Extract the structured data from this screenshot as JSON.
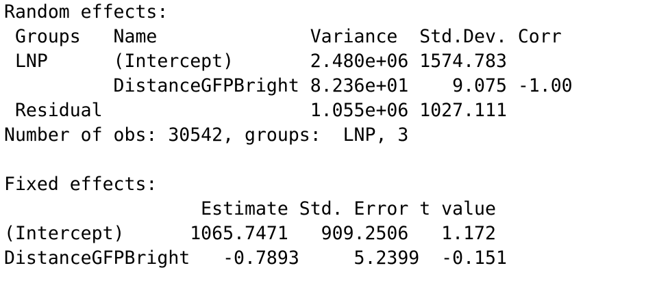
{
  "console": {
    "lines": [
      "Random effects:",
      " Groups   Name              Variance  Std.Dev. Corr",
      " LNP      (Intercept)       2.480e+06 1574.783",
      "          DistanceGFPBright 8.236e+01    9.075 -1.00",
      " Residual                   1.055e+06 1027.111",
      "Number of obs: 30542, groups:  LNP, 3",
      "",
      "Fixed effects:",
      "                  Estimate Std. Error t value",
      "(Intercept)      1065.7471   909.2506   1.172",
      "DistanceGFPBright   -0.7893     5.2399  -0.151"
    ]
  }
}
